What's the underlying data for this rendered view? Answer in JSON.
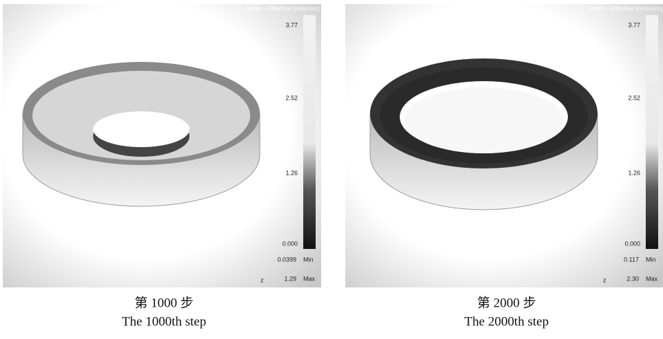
{
  "panels": [
    {
      "legend_title": "Strain - Effective (mm/mm)",
      "scale_labels": [
        "3.77",
        "2.52",
        "1.26",
        "0.000"
      ],
      "min_value": "0.0399",
      "min_label": "Min",
      "max_value": "1.29",
      "max_label": "Max",
      "axis": "z",
      "caption_zh": "第 1000 步",
      "caption_en": "The 1000th step"
    },
    {
      "legend_title": "Strain - Effective (mm/mm)",
      "scale_labels": [
        "3.77",
        "2.52",
        "1.26",
        "0.000"
      ],
      "min_value": "0.117",
      "min_label": "Min",
      "max_value": "2.30",
      "max_label": "Max",
      "axis": "z",
      "caption_zh": "第 2000 步",
      "caption_en": "The 2000th step"
    }
  ]
}
